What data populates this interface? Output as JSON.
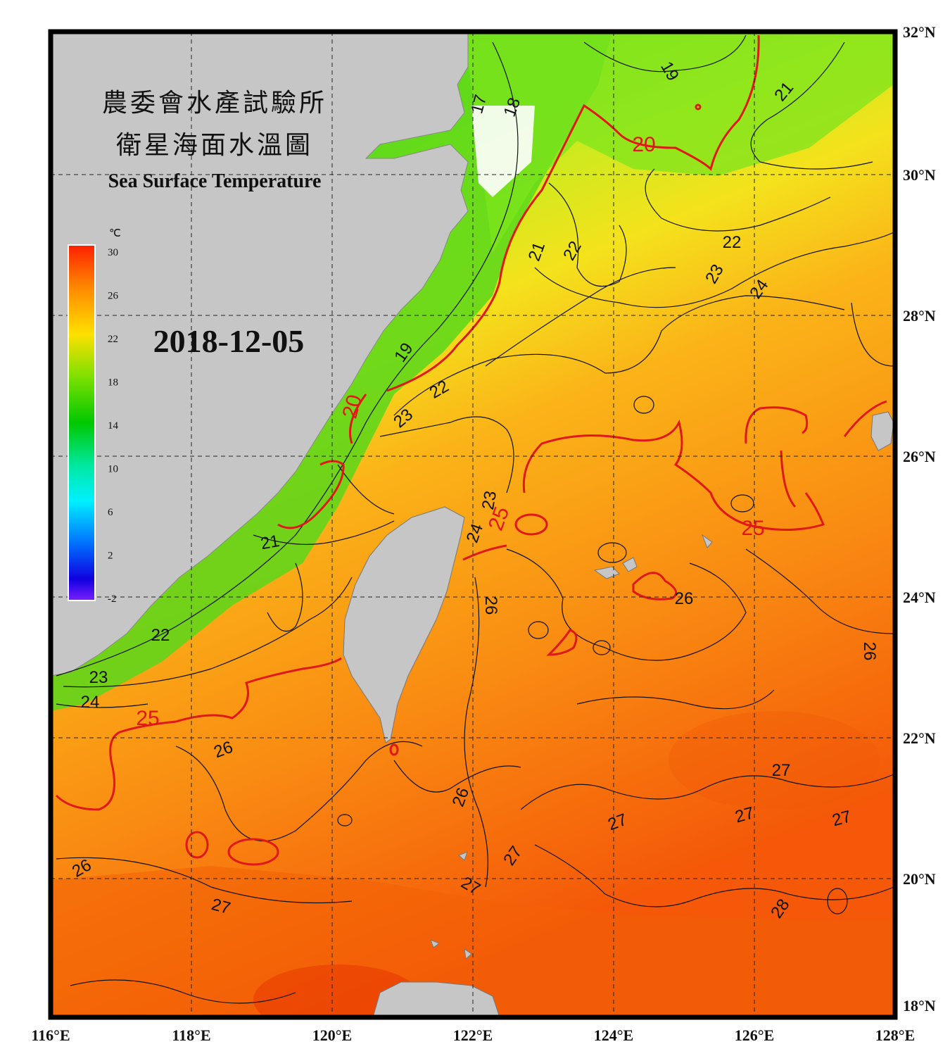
{
  "title": {
    "line1": "農委會水產試驗所",
    "line2": "衛星海面水溫圖",
    "line3": "Sea Surface Temperature"
  },
  "date": "2018-12-05",
  "colorbar": {
    "unit": "℃",
    "ticks": [
      "30",
      "26",
      "22",
      "18",
      "14",
      "10",
      "6",
      "2",
      "-2"
    ]
  },
  "axes": {
    "lon_labels": [
      "116°E",
      "118°E",
      "120°E",
      "122°E",
      "124°E",
      "126°E",
      "128°E"
    ],
    "lat_labels": [
      "32°N",
      "30°N",
      "28°N",
      "26°N",
      "24°N",
      "22°N",
      "20°N",
      "18°N"
    ]
  },
  "isotherm_labels": [
    {
      "text": "19",
      "red": false
    },
    {
      "text": "21",
      "red": false
    },
    {
      "text": "17",
      "red": false
    },
    {
      "text": "18",
      "red": false
    },
    {
      "text": "20",
      "red": true
    },
    {
      "text": "21",
      "red": false
    },
    {
      "text": "22",
      "red": false
    },
    {
      "text": "22",
      "red": false
    },
    {
      "text": "23",
      "red": false
    },
    {
      "text": "24",
      "red": false
    },
    {
      "text": "19",
      "red": false
    },
    {
      "text": "20",
      "red": true
    },
    {
      "text": "22",
      "red": false
    },
    {
      "text": "23",
      "red": false
    },
    {
      "text": "23",
      "red": false
    },
    {
      "text": "25",
      "red": true
    },
    {
      "text": "24",
      "red": false
    },
    {
      "text": "21",
      "red": false
    },
    {
      "text": "25",
      "red": true
    },
    {
      "text": "26",
      "red": false
    },
    {
      "text": "26",
      "red": false
    },
    {
      "text": "26",
      "red": false
    },
    {
      "text": "22",
      "red": false
    },
    {
      "text": "23",
      "red": false
    },
    {
      "text": "24",
      "red": false
    },
    {
      "text": "25",
      "red": true
    },
    {
      "text": "26",
      "red": false
    },
    {
      "text": "27",
      "red": false
    },
    {
      "text": "26",
      "red": false
    },
    {
      "text": "27",
      "red": false
    },
    {
      "text": "27",
      "red": false
    },
    {
      "text": "27",
      "red": false
    },
    {
      "text": "27",
      "red": false
    },
    {
      "text": "26",
      "red": false
    },
    {
      "text": "27",
      "red": false
    },
    {
      "text": "27",
      "red": false
    },
    {
      "text": "28",
      "red": false
    }
  ],
  "colors": {
    "land": "#c6c6c6",
    "isotherm_red": "#e01818",
    "frame": "#000000"
  }
}
